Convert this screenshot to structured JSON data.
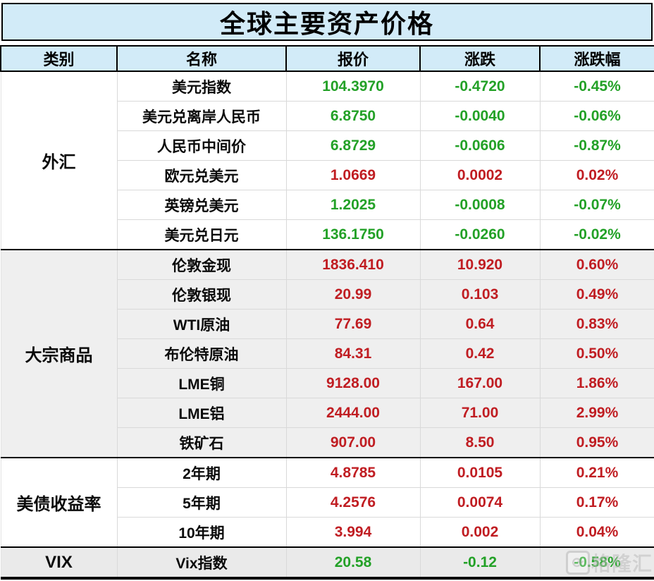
{
  "title": "全球主要资产价格",
  "columns": [
    "类别",
    "名称",
    "报价",
    "涨跌",
    "涨跌幅"
  ],
  "colors": {
    "up_red": "#c01d22",
    "down_green": "#23a127",
    "header_bg": "#d2ebf8",
    "shaded_row_bg": "#efefef",
    "vix_row_bg": "#eaeaea"
  },
  "watermark": {
    "text": "格隆汇",
    "icon": "circular-arrow-logo"
  },
  "sections": [
    {
      "category": "外汇",
      "shaded": false,
      "rows": [
        {
          "name": "美元指数",
          "quote": "104.3970",
          "change": "-0.4720",
          "pct": "-0.45%",
          "dir": "down"
        },
        {
          "name": "美元兑离岸人民币",
          "quote": "6.8750",
          "change": "-0.0040",
          "pct": "-0.06%",
          "dir": "down"
        },
        {
          "name": "人民币中间价",
          "quote": "6.8729",
          "change": "-0.0606",
          "pct": "-0.87%",
          "dir": "down"
        },
        {
          "name": "欧元兑美元",
          "quote": "1.0669",
          "change": "0.0002",
          "pct": "0.02%",
          "dir": "up"
        },
        {
          "name": "英镑兑美元",
          "quote": "1.2025",
          "change": "-0.0008",
          "pct": "-0.07%",
          "dir": "down"
        },
        {
          "name": "美元兑日元",
          "quote": "136.1750",
          "change": "-0.0260",
          "pct": "-0.02%",
          "dir": "down"
        }
      ]
    },
    {
      "category": "大宗商品",
      "shaded": true,
      "rows": [
        {
          "name": "伦敦金现",
          "quote": "1836.410",
          "change": "10.920",
          "pct": "0.60%",
          "dir": "up"
        },
        {
          "name": "伦敦银现",
          "quote": "20.99",
          "change": "0.103",
          "pct": "0.49%",
          "dir": "up"
        },
        {
          "name": "WTI原油",
          "quote": "77.69",
          "change": "0.64",
          "pct": "0.83%",
          "dir": "up"
        },
        {
          "name": "布伦特原油",
          "quote": "84.31",
          "change": "0.42",
          "pct": "0.50%",
          "dir": "up"
        },
        {
          "name": "LME铜",
          "quote": "9128.00",
          "change": "167.00",
          "pct": "1.86%",
          "dir": "up"
        },
        {
          "name": "LME铝",
          "quote": "2444.00",
          "change": "71.00",
          "pct": "2.99%",
          "dir": "up"
        },
        {
          "name": "铁矿石",
          "quote": "907.00",
          "change": "8.50",
          "pct": "0.95%",
          "dir": "up"
        }
      ]
    },
    {
      "category": "美债收益率",
      "shaded": false,
      "rows": [
        {
          "name": "2年期",
          "quote": "4.8785",
          "change": "0.0105",
          "pct": "0.21%",
          "dir": "up"
        },
        {
          "name": "5年期",
          "quote": "4.2576",
          "change": "0.0074",
          "pct": "0.17%",
          "dir": "up"
        },
        {
          "name": "10年期",
          "quote": "3.994",
          "change": "0.002",
          "pct": "0.04%",
          "dir": "up"
        }
      ]
    },
    {
      "category": "VIX",
      "shaded": false,
      "vix": true,
      "rows": [
        {
          "name": "Vix指数",
          "quote": "20.58",
          "change": "-0.12",
          "pct": "-0.58%",
          "dir": "down"
        }
      ]
    }
  ],
  "chart_data": {
    "type": "table",
    "title": "全球主要资产价格",
    "columns": [
      "类别",
      "名称",
      "报价",
      "涨跌",
      "涨跌幅"
    ],
    "rows": [
      [
        "外汇",
        "美元指数",
        104.397,
        -0.472,
        "-0.45%"
      ],
      [
        "外汇",
        "美元兑离岸人民币",
        6.875,
        -0.004,
        "-0.06%"
      ],
      [
        "外汇",
        "人民币中间价",
        6.8729,
        -0.0606,
        "-0.87%"
      ],
      [
        "外汇",
        "欧元兑美元",
        1.0669,
        0.0002,
        "0.02%"
      ],
      [
        "外汇",
        "英镑兑美元",
        1.2025,
        -0.0008,
        "-0.07%"
      ],
      [
        "外汇",
        "美元兑日元",
        136.175,
        -0.026,
        "-0.02%"
      ],
      [
        "大宗商品",
        "伦敦金现",
        1836.41,
        10.92,
        "0.60%"
      ],
      [
        "大宗商品",
        "伦敦银现",
        20.99,
        0.103,
        "0.49%"
      ],
      [
        "大宗商品",
        "WTI原油",
        77.69,
        0.64,
        "0.83%"
      ],
      [
        "大宗商品",
        "布伦特原油",
        84.31,
        0.42,
        "0.50%"
      ],
      [
        "大宗商品",
        "LME铜",
        9128.0,
        167.0,
        "1.86%"
      ],
      [
        "大宗商品",
        "LME铝",
        2444.0,
        71.0,
        "2.99%"
      ],
      [
        "大宗商品",
        "铁矿石",
        907.0,
        8.5,
        "0.95%"
      ],
      [
        "美债收益率",
        "2年期",
        4.8785,
        0.0105,
        "0.21%"
      ],
      [
        "美债收益率",
        "5年期",
        4.2576,
        0.0074,
        "0.17%"
      ],
      [
        "美债收益率",
        "10年期",
        3.994,
        0.002,
        "0.04%"
      ],
      [
        "VIX",
        "Vix指数",
        20.58,
        -0.12,
        "-0.58%"
      ]
    ],
    "color_coding": "gains red, declines green"
  }
}
